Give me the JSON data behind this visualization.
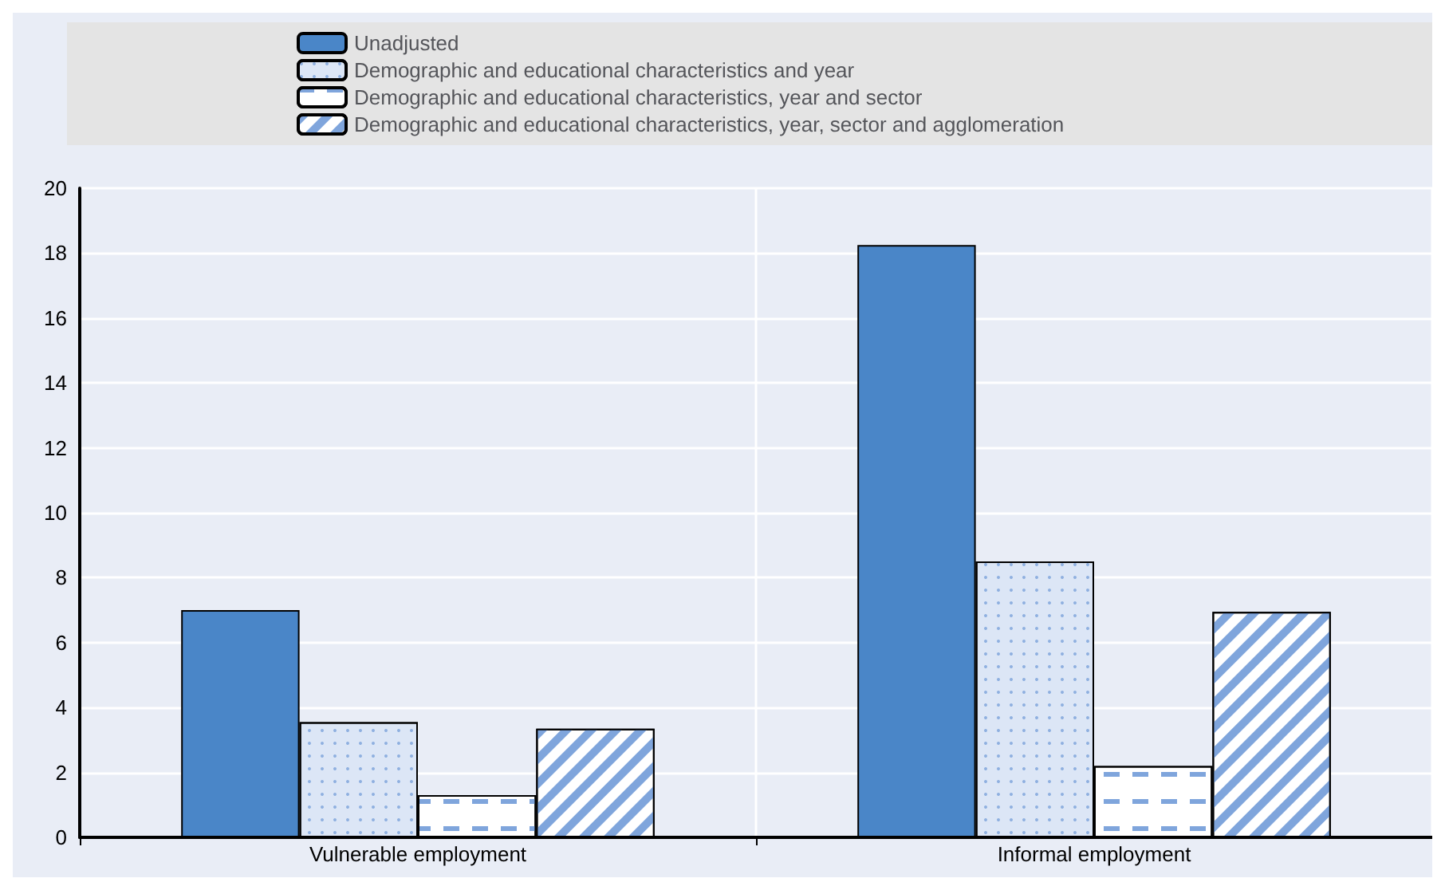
{
  "chart_data": {
    "type": "bar",
    "categories": [
      "Vulnerable employment",
      "Informal employment"
    ],
    "series": [
      {
        "name": "Unadjusted",
        "color": "#4a86c8",
        "values": [
          7.0,
          18.25
        ]
      },
      {
        "name": "Demographic and educational characteristics and year",
        "color": "#dce6f6",
        "values": [
          3.55,
          8.5
        ]
      },
      {
        "name": "Demographic and educational characteristics, year and sector",
        "color": "#ffffff",
        "values": [
          1.3,
          2.2
        ]
      },
      {
        "name": "Demographic and educational characteristics, year, sector and agglomeration",
        "color": "#ffffff",
        "values": [
          3.35,
          6.95
        ]
      }
    ],
    "ylim": [
      0,
      20
    ],
    "yticks": [
      0,
      2,
      4,
      6,
      8,
      10,
      12,
      14,
      16,
      18,
      20
    ],
    "grid": "y",
    "legend": "top"
  }
}
